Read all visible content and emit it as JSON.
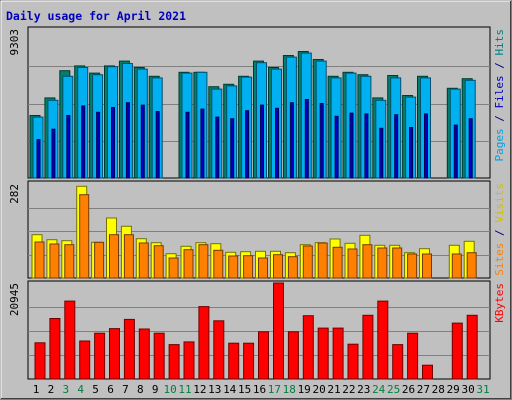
{
  "chart_data": {
    "type": "bar",
    "title": "Daily usage for April 2021",
    "days": [
      "1",
      "2",
      "3",
      "4",
      "5",
      "6",
      "7",
      "8",
      "9",
      "10",
      "11",
      "12",
      "13",
      "14",
      "15",
      "16",
      "17",
      "18",
      "19",
      "20",
      "21",
      "22",
      "23",
      "24",
      "25",
      "26",
      "27",
      "28",
      "29",
      "30",
      "31"
    ],
    "weekend_days": [
      3,
      4,
      10,
      11,
      17,
      18,
      24,
      25,
      31
    ],
    "panels": [
      {
        "id": "hits",
        "max_label": "9303",
        "ymax": 9303,
        "side_label_parts": [
          {
            "text": "Pages",
            "color": "#00a0e0"
          },
          {
            "text": " / ",
            "color": "#000080"
          },
          {
            "text": "Files",
            "color": "#0000c0"
          },
          {
            "text": " / ",
            "color": "#000080"
          },
          {
            "text": "Hits",
            "color": "#008080"
          }
        ],
        "series": [
          {
            "name": "Hits",
            "color": "#00806c",
            "values": [
              3900,
              5000,
              6700,
              7000,
              6550,
              7000,
              7300,
              6900,
              6350,
              null,
              6600,
              6600,
              5700,
              5850,
              6350,
              7300,
              6900,
              7650,
              7900,
              7400,
              6350,
              6600,
              6450,
              5000,
              6400,
              5150,
              6350,
              null,
              5600,
              6200,
              null
            ]
          },
          {
            "name": "Files",
            "color": "#00b0f0",
            "values": [
              3800,
              4850,
              6350,
              6900,
              6450,
              6950,
              7150,
              6800,
              6250,
              null,
              6550,
              6600,
              5550,
              5750,
              6300,
              7200,
              6800,
              7550,
              7800,
              7300,
              6250,
              6550,
              6350,
              4850,
              6250,
              5050,
              6250,
              null,
              5550,
              6100,
              null
            ]
          },
          {
            "name": "Pages",
            "color": "#0000c0",
            "values": [
              2400,
              3050,
              3900,
              4500,
              4100,
              4400,
              4700,
              4550,
              4150,
              null,
              4100,
              4300,
              3800,
              3700,
              4200,
              4550,
              4350,
              4700,
              4900,
              4650,
              3850,
              4050,
              4000,
              3100,
              3950,
              3150,
              4000,
              null,
              3300,
              3700,
              null
            ]
          }
        ]
      },
      {
        "id": "visits",
        "max_label": "282",
        "ymax": 282,
        "side_label_parts": [
          {
            "text": "Sites",
            "color": "#ff8000"
          },
          {
            "text": " / ",
            "color": "#000080"
          },
          {
            "text": "Visits",
            "color": "#d0c000"
          }
        ],
        "series": [
          {
            "name": "Visits",
            "color": "#ffff00",
            "values": [
              130,
              115,
              112,
              275,
              107,
              180,
              155,
              118,
              106,
              73,
              95,
              106,
              103,
              77,
              79,
              80,
              80,
              76,
              100,
              106,
              117,
              104,
              128,
              98,
              98,
              76,
              88,
              null,
              98,
              110,
              null
            ]
          },
          {
            "name": "Sites",
            "color": "#ff8000",
            "values": [
              108,
              102,
              100,
              250,
              107,
              130,
              130,
              105,
              97,
              60,
              85,
              100,
              83,
              66,
              67,
              60,
              70,
              64,
              96,
              105,
              92,
              87,
              100,
              90,
              90,
              72,
              72,
              null,
              72,
              76,
              null
            ]
          }
        ]
      },
      {
        "id": "kbytes",
        "max_label": "20945",
        "ymax": 20945,
        "side_label_parts": [
          {
            "text": "KBytes",
            "color": "#ff0000"
          }
        ],
        "series": [
          {
            "name": "KBytes",
            "color": "#ff0000",
            "values": [
              7900,
              13200,
              17000,
              8300,
              10000,
              11000,
              13000,
              10900,
              10000,
              7500,
              8100,
              15800,
              12700,
              7800,
              7800,
              10300,
              20945,
              10300,
              13800,
              11100,
              11100,
              7600,
              13900,
              17000,
              7500,
              10000,
              3000,
              null,
              12200,
              13900,
              null
            ]
          }
        ]
      }
    ]
  }
}
